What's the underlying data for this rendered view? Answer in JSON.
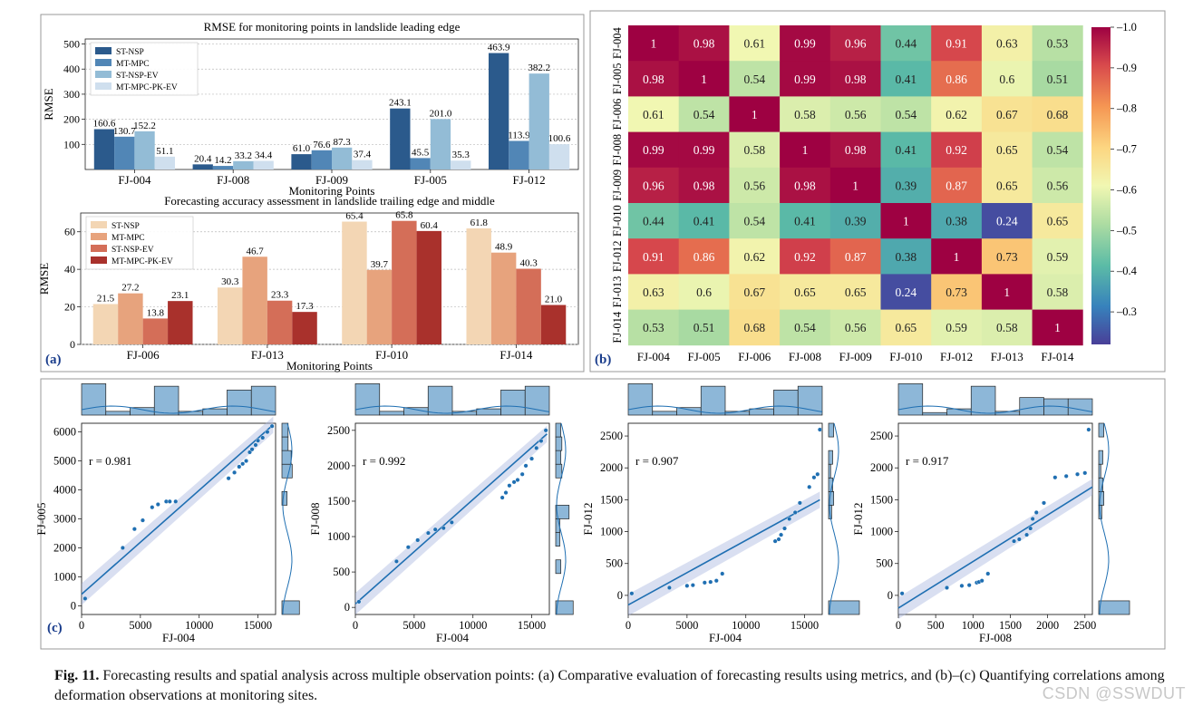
{
  "colors": {
    "blues": [
      "#2b5a8c",
      "#5186b6",
      "#93bcd6",
      "#cfdfee"
    ],
    "reds": [
      "#f3d6b4",
      "#e7a37d",
      "#d46e58",
      "#a9312c"
    ],
    "scatter": "#1f6fb2",
    "hist": "#8db7d8",
    "panel_label": "#1a3d8c"
  },
  "chart_data": [
    {
      "id": "rmse-leading",
      "type": "bar",
      "title": "RMSE for monitoring points in landslide leading edge",
      "xlabel": "Monitoring Points",
      "ylabel": "RMSE",
      "ylim": [
        0,
        520
      ],
      "yticks": [
        100,
        200,
        300,
        400,
        500
      ],
      "legend": "top-left",
      "categories": [
        "FJ-004",
        "FJ-008",
        "FJ-009",
        "FJ-005",
        "FJ-012"
      ],
      "series": [
        {
          "name": "ST-NSP",
          "values": [
            160.6,
            20.4,
            61.0,
            243.1,
            463.9
          ],
          "labels": [
            "160.6",
            "20.4",
            "61.0",
            "243.1",
            "463.9"
          ]
        },
        {
          "name": "MT-MPC",
          "values": [
            130.7,
            14.2,
            76.6,
            45.5,
            113.9
          ],
          "labels": [
            "130.7",
            "14.2",
            "76.6",
            "45.5",
            "113.9"
          ]
        },
        {
          "name": "ST-NSP-EV",
          "values": [
            152.2,
            33.2,
            87.3,
            201.0,
            382.2
          ],
          "labels": [
            "152.2",
            "33.2",
            "87.3",
            "201.0",
            "382.2"
          ]
        },
        {
          "name": "MT-MPC-PK-EV",
          "values": [
            51.1,
            34.4,
            37.4,
            35.3,
            100.6
          ],
          "labels": [
            "51.1",
            "34.4",
            "37.4",
            "35.3",
            "100.6"
          ]
        }
      ]
    },
    {
      "id": "accuracy-trailing",
      "type": "bar",
      "title": "Forecasting accuracy assessment in landslide trailing edge and middle",
      "xlabel": "Monitoring Points",
      "ylabel": "RMSE",
      "ylim": [
        0,
        70
      ],
      "yticks": [
        0,
        20,
        40,
        60
      ],
      "legend": "top-left",
      "panel_label": "(a)",
      "categories": [
        "FJ-006",
        "FJ-013",
        "FJ-010",
        "FJ-014"
      ],
      "series": [
        {
          "name": "ST-NSP",
          "values": [
            21.5,
            30.3,
            65.4,
            61.8
          ],
          "labels": [
            "21.5",
            "30.3",
            "65.4",
            "61.8"
          ]
        },
        {
          "name": "MT-MPC",
          "values": [
            27.2,
            46.7,
            39.7,
            48.9
          ],
          "labels": [
            "27.2",
            "46.7",
            "39.7",
            "48.9"
          ]
        },
        {
          "name": "ST-NSP-EV",
          "values": [
            13.8,
            23.3,
            65.8,
            40.3
          ],
          "labels": [
            "13.8",
            "23.3",
            "65.8",
            "40.3"
          ]
        },
        {
          "name": "MT-MPC-PK-EV",
          "values": [
            23.1,
            17.3,
            60.4,
            21.0
          ],
          "labels": [
            "23.1",
            "17.3",
            "60.4",
            "21.0"
          ]
        }
      ]
    },
    {
      "id": "correlation-heatmap",
      "type": "heatmap",
      "panel_label": "(b)",
      "labels": [
        "FJ-004",
        "FJ-005",
        "FJ-006",
        "FJ-008",
        "FJ-009",
        "FJ-010",
        "FJ-012",
        "FJ-013",
        "FJ-014"
      ],
      "colorbar_range": [
        0.22,
        1.0
      ],
      "colorbar_ticks": [
        "0.3",
        "0.4",
        "0.5",
        "0.6",
        "0.7",
        "0.8",
        "0.9",
        "1.0"
      ],
      "matrix": [
        [
          "1",
          "0.98",
          "0.61",
          "0.99",
          "0.96",
          "0.44",
          "0.91",
          "0.63",
          "0.53"
        ],
        [
          "0.98",
          "1",
          "0.54",
          "0.99",
          "0.98",
          "0.41",
          "0.86",
          "0.6",
          "0.51"
        ],
        [
          "0.61",
          "0.54",
          "1",
          "0.58",
          "0.56",
          "0.54",
          "0.62",
          "0.67",
          "0.68"
        ],
        [
          "0.99",
          "0.99",
          "0.58",
          "1",
          "0.98",
          "0.41",
          "0.92",
          "0.65",
          "0.54"
        ],
        [
          "0.96",
          "0.98",
          "0.56",
          "0.98",
          "1",
          "0.39",
          "0.87",
          "0.65",
          "0.56"
        ],
        [
          "0.44",
          "0.41",
          "0.54",
          "0.41",
          "0.39",
          "1",
          "0.38",
          "0.24",
          "0.65"
        ],
        [
          "0.91",
          "0.86",
          "0.62",
          "0.92",
          "0.87",
          "0.38",
          "1",
          "0.73",
          "0.59"
        ],
        [
          "0.63",
          "0.6",
          "0.67",
          "0.65",
          "0.65",
          "0.24",
          "0.73",
          "1",
          "0.58"
        ],
        [
          "0.53",
          "0.51",
          "0.68",
          "0.54",
          "0.56",
          "0.65",
          "0.59",
          "0.58",
          "1"
        ]
      ]
    },
    {
      "id": "scatter-004-005",
      "type": "scatter",
      "panel_label": "(c)",
      "xlabel": "FJ-004",
      "ylabel": "FJ-005",
      "r_label": "r = 0.981",
      "xlim": [
        0,
        16500
      ],
      "ylim": [
        -300,
        6300
      ],
      "xticks": [
        0,
        5000,
        10000,
        15000
      ],
      "yticks": [
        0,
        1000,
        2000,
        3000,
        4000,
        5000,
        6000
      ],
      "fit": [
        [
          0,
          400
        ],
        [
          16300,
          6250
        ]
      ],
      "x": [
        300,
        3500,
        4500,
        5200,
        6000,
        6500,
        7200,
        7500,
        8000,
        12500,
        13000,
        13400,
        13700,
        14000,
        14300,
        14500,
        14800,
        15000,
        15400,
        15800,
        16200
      ],
      "y": [
        250,
        2000,
        2650,
        2950,
        3400,
        3500,
        3600,
        3600,
        3600,
        4400,
        4600,
        4800,
        4900,
        5000,
        5300,
        5400,
        5550,
        5700,
        5800,
        6000,
        6200
      ],
      "top_hist": [
        2.5,
        0.3,
        0.6,
        2.3,
        0.3,
        0.5,
        2.0,
        2.3
      ],
      "right_hist": [
        1.7,
        0,
        0,
        0,
        0,
        0,
        0,
        0,
        0.5,
        0,
        1.0,
        0.9,
        0.6,
        0.6
      ]
    },
    {
      "id": "scatter-004-008",
      "type": "scatter",
      "xlabel": "FJ-004",
      "ylabel": "FJ-008",
      "r_label": "r = 0.992",
      "xlim": [
        0,
        16500
      ],
      "ylim": [
        -100,
        2600
      ],
      "xticks": [
        0,
        5000,
        10000,
        15000
      ],
      "yticks": [
        0,
        500,
        1000,
        1500,
        2000,
        2500
      ],
      "fit": [
        [
          0,
          50
        ],
        [
          16300,
          2450
        ]
      ],
      "x": [
        300,
        3500,
        4500,
        5300,
        6200,
        6800,
        7500,
        8200,
        12500,
        12800,
        13100,
        13500,
        13800,
        14200,
        14500,
        15000,
        15400,
        15800,
        16200
      ],
      "y": [
        80,
        650,
        850,
        950,
        1050,
        1100,
        1120,
        1200,
        1550,
        1620,
        1720,
        1770,
        1800,
        1880,
        2000,
        2100,
        2250,
        2350,
        2500
      ],
      "top_hist": [
        2.5,
        0.3,
        0.6,
        2.3,
        0.3,
        0.5,
        2.0,
        2.3
      ],
      "right_hist": [
        1.7,
        0,
        0,
        0.5,
        0,
        0.4,
        0.4,
        1.3,
        0,
        0,
        0.6,
        0.5,
        0.6,
        0.5
      ]
    },
    {
      "id": "scatter-004-012",
      "type": "scatter",
      "xlabel": "FJ-004",
      "ylabel": "FJ-012",
      "r_label": "r = 0.907",
      "xlim": [
        0,
        16500
      ],
      "ylim": [
        -300,
        2700
      ],
      "xticks": [
        0,
        5000,
        10000,
        15000
      ],
      "yticks": [
        0,
        500,
        1000,
        1500,
        2000,
        2500
      ],
      "fit": [
        [
          0,
          -150
        ],
        [
          16300,
          1500
        ]
      ],
      "x": [
        300,
        3500,
        5000,
        5500,
        6500,
        7000,
        7500,
        8000,
        12500,
        12800,
        13000,
        13300,
        13700,
        14200,
        14600,
        15400,
        15800,
        16100,
        16300
      ],
      "y": [
        30,
        120,
        150,
        160,
        200,
        210,
        230,
        340,
        850,
        880,
        950,
        1050,
        1200,
        1300,
        1450,
        1700,
        1850,
        1900,
        2600
      ],
      "top_hist": [
        2.5,
        0.3,
        0.6,
        2.3,
        0.3,
        0.5,
        2.0,
        2.3
      ],
      "right_hist": [
        3.0,
        0,
        0,
        0,
        0,
        0,
        0,
        0.3,
        0.5,
        0.4,
        0.2,
        0.4,
        0,
        0.5
      ]
    },
    {
      "id": "scatter-008-012",
      "type": "scatter",
      "xlabel": "FJ-008",
      "ylabel": "FJ-012",
      "r_label": "r = 0.917",
      "xlim": [
        0,
        2600
      ],
      "ylim": [
        -300,
        2700
      ],
      "xticks": [
        0,
        500,
        1000,
        1500,
        2000,
        2500
      ],
      "yticks": [
        0,
        500,
        1000,
        1500,
        2000,
        2500
      ],
      "fit": [
        [
          0,
          -200
        ],
        [
          2600,
          1700
        ]
      ],
      "x": [
        50,
        650,
        850,
        950,
        1050,
        1080,
        1120,
        1200,
        1550,
        1620,
        1720,
        1770,
        1800,
        1850,
        1950,
        2100,
        2250,
        2400,
        2500,
        2550
      ],
      "y": [
        30,
        120,
        150,
        160,
        200,
        210,
        230,
        340,
        850,
        880,
        950,
        1050,
        1200,
        1300,
        1450,
        1850,
        1870,
        1900,
        1920,
        2600
      ],
      "top_hist": [
        2.5,
        0.2,
        0.5,
        2.3,
        0.3,
        1.4,
        1.3,
        1.3
      ],
      "right_hist": [
        3.0,
        0,
        0,
        0,
        0,
        0,
        0,
        0.3,
        0.5,
        0.4,
        0.2,
        0.4,
        0,
        0.5
      ]
    }
  ],
  "caption": {
    "label": "Fig. 11.",
    "text": " Forecasting results and spatial analysis across multiple observation points: (a) Comparative evaluation of forecasting results using metrics, and (b)–(c) Quantifying correlations among deformation observations at monitoring sites."
  },
  "watermark": "CSDN @SSWDUT"
}
